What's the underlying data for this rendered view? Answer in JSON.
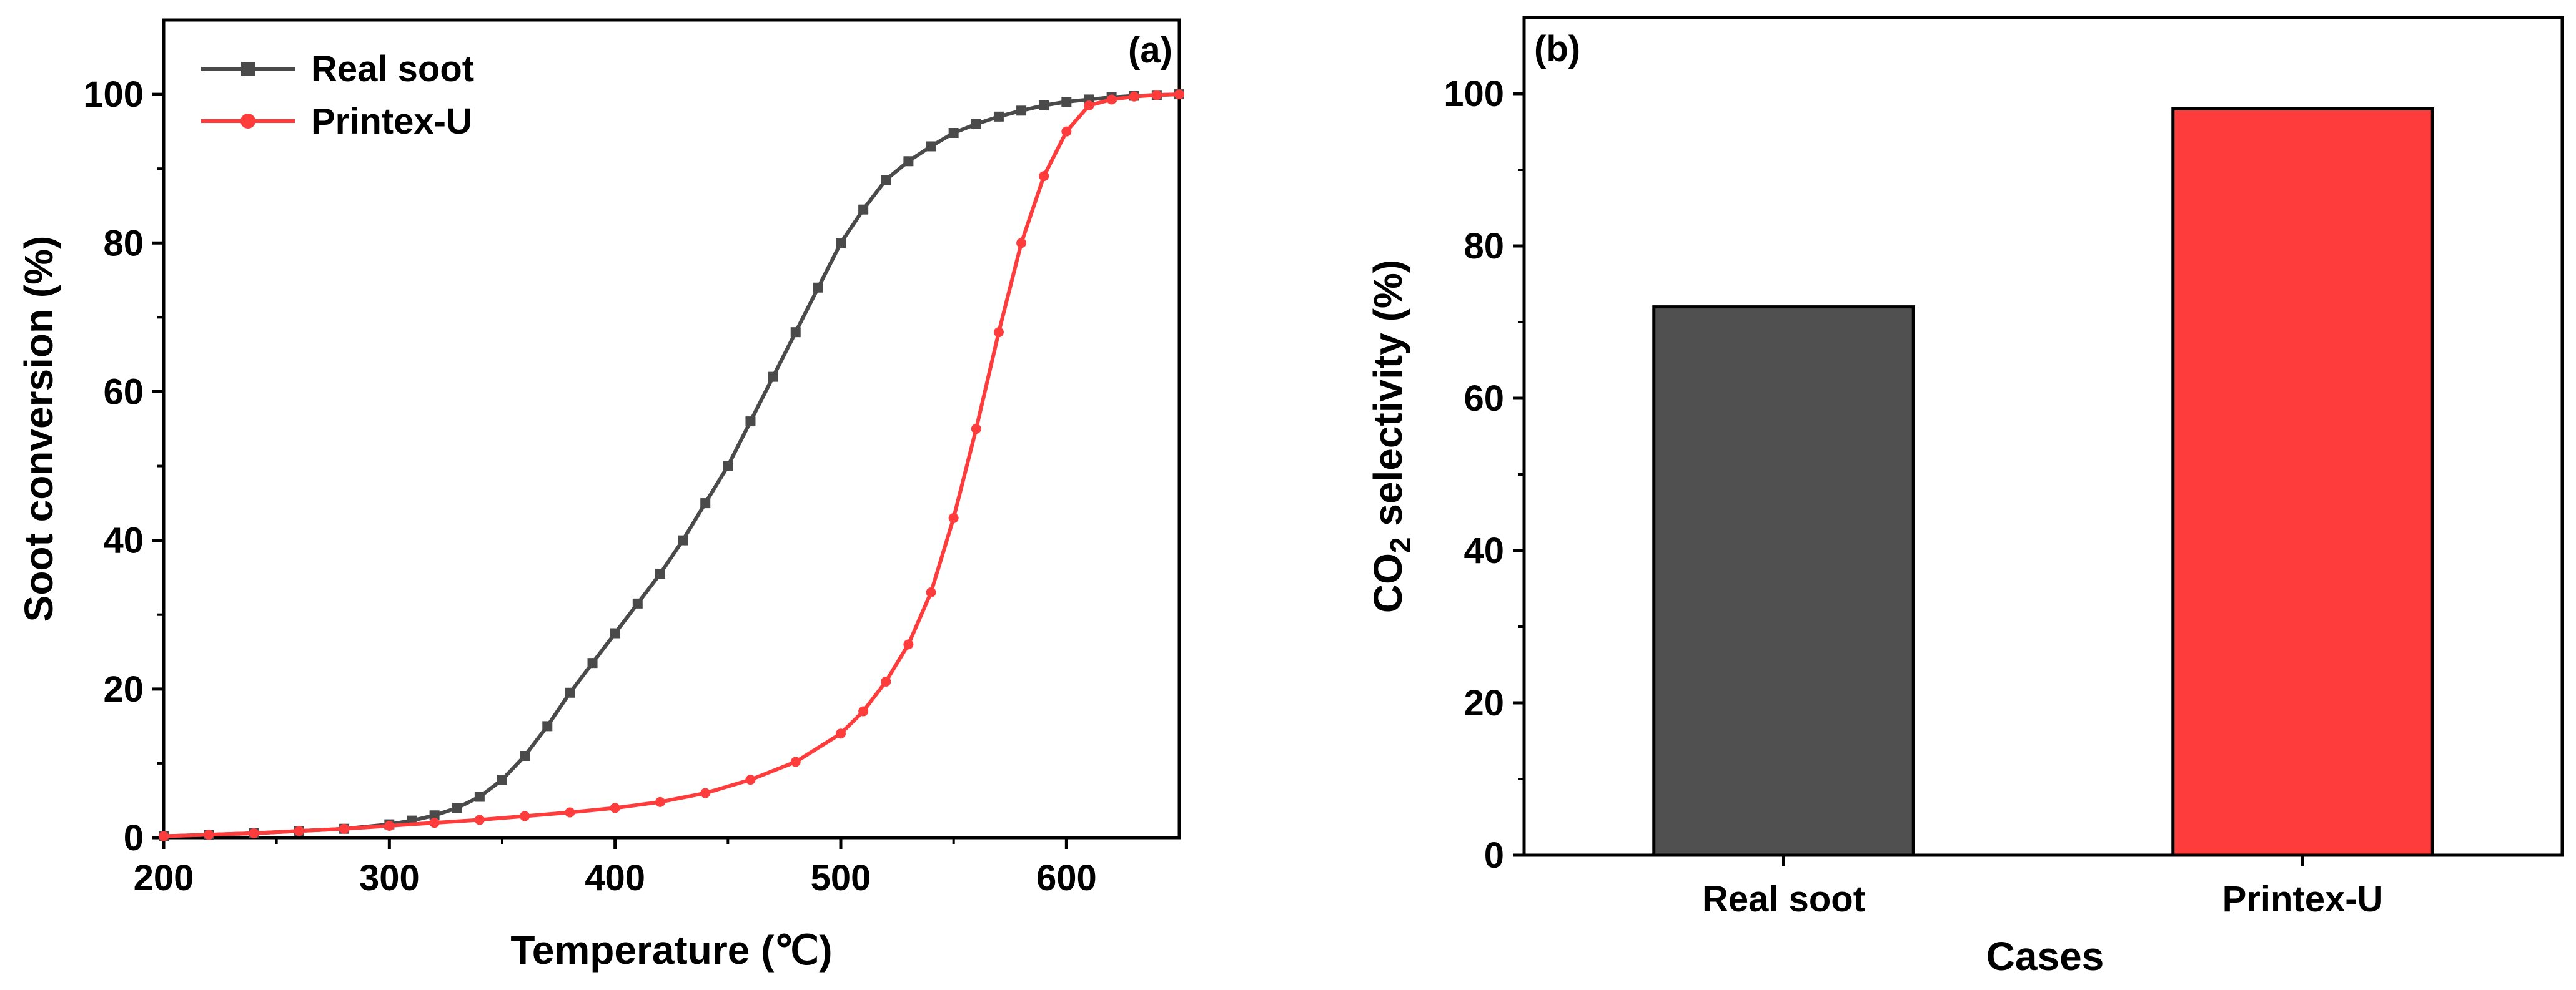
{
  "chart_data": [
    {
      "type": "line",
      "panel_label": "(a)",
      "xlabel": "Temperature (℃)",
      "ylabel": "Soot conversion (%)",
      "xlim": [
        200,
        650
      ],
      "ylim": [
        0,
        110
      ],
      "xticks": [
        200,
        300,
        400,
        500,
        600
      ],
      "yticks": [
        0,
        20,
        40,
        60,
        80,
        100
      ],
      "legend_position": "top-left",
      "series": [
        {
          "name": "Real soot",
          "color": "#4a4a4a",
          "marker": "square",
          "x": [
            200,
            220,
            240,
            260,
            280,
            300,
            310,
            320,
            330,
            340,
            350,
            360,
            370,
            380,
            390,
            400,
            410,
            420,
            430,
            440,
            450,
            460,
            470,
            480,
            490,
            500,
            510,
            520,
            530,
            540,
            550,
            560,
            570,
            580,
            590,
            600,
            610,
            620,
            630,
            640,
            650
          ],
          "y": [
            0.2,
            0.4,
            0.6,
            0.9,
            1.2,
            1.8,
            2.3,
            3.0,
            4.0,
            5.5,
            7.8,
            11,
            15,
            19.5,
            23.5,
            27.5,
            31.5,
            35.5,
            40,
            45,
            50,
            56,
            62,
            68,
            74,
            80,
            84.5,
            88.5,
            91,
            93,
            94.8,
            96,
            97,
            97.8,
            98.5,
            99,
            99.3,
            99.6,
            99.8,
            99.9,
            100
          ]
        },
        {
          "name": "Printex-U",
          "color": "#ff3c3c",
          "marker": "circle",
          "x": [
            200,
            220,
            240,
            260,
            280,
            300,
            320,
            340,
            360,
            380,
            400,
            420,
            440,
            460,
            480,
            500,
            510,
            520,
            530,
            540,
            550,
            560,
            570,
            580,
            590,
            600,
            610,
            620,
            630,
            640,
            650
          ],
          "y": [
            0.2,
            0.4,
            0.6,
            0.9,
            1.2,
            1.6,
            2.0,
            2.4,
            2.9,
            3.4,
            4.0,
            4.8,
            6.0,
            7.8,
            10.2,
            14,
            17,
            21,
            26,
            33,
            43,
            55,
            68,
            80,
            89,
            95,
            98.5,
            99.3,
            99.7,
            99.9,
            100
          ]
        }
      ]
    },
    {
      "type": "bar",
      "panel_label": "(b)",
      "xlabel": "Cases",
      "ylabel_main": "CO",
      "ylabel_sub": "2",
      "ylabel_rest": " selectivity (%)",
      "ylim": [
        0,
        110
      ],
      "yticks": [
        0,
        20,
        40,
        60,
        80,
        100
      ],
      "categories": [
        "Real soot",
        "Printex-U"
      ],
      "values": [
        72,
        98
      ],
      "colors": [
        "#505050",
        "#ff3c3c"
      ]
    }
  ]
}
